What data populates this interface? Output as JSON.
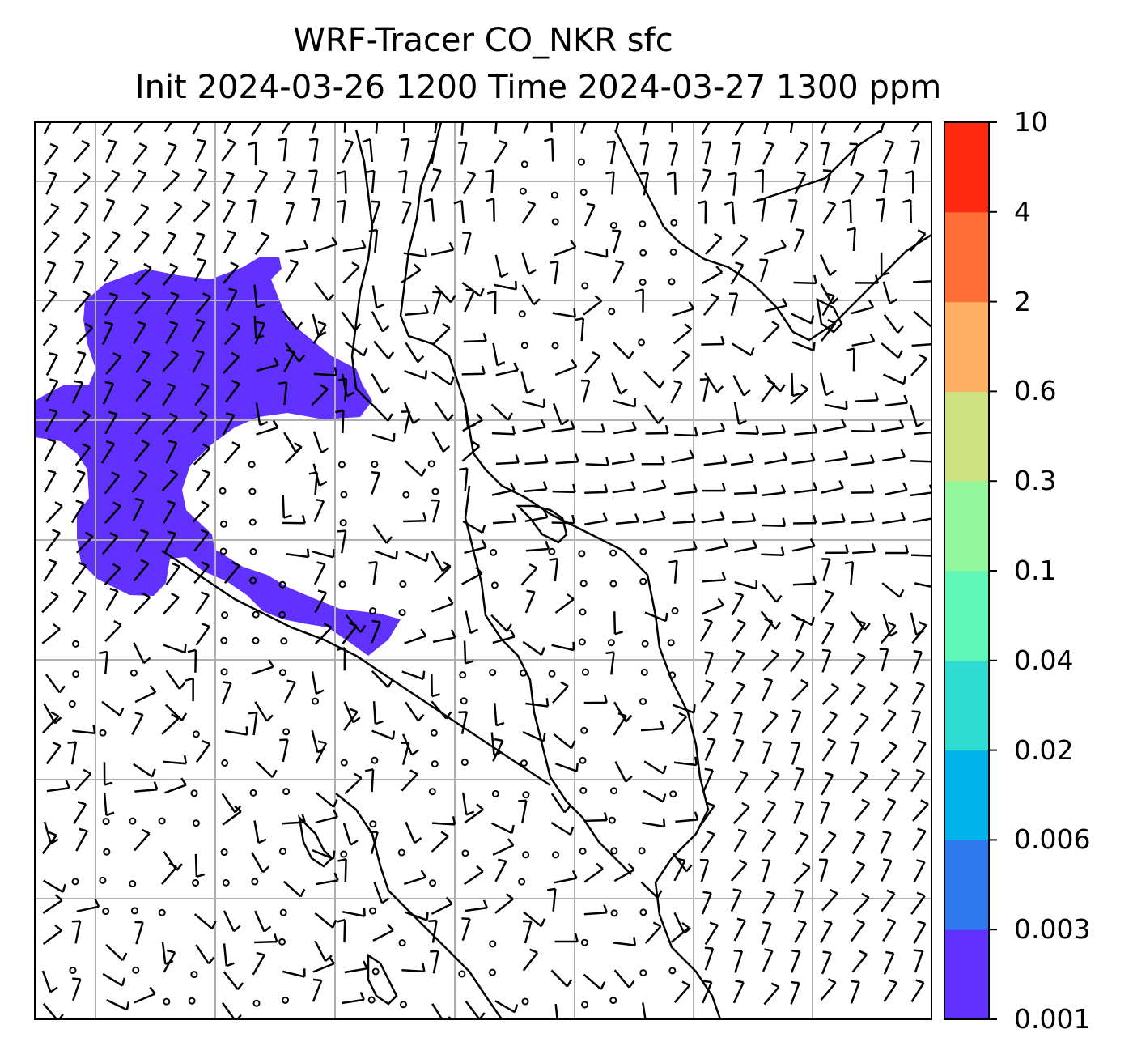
{
  "title": {
    "line1": "WRF-Tracer CO_NKR sfc",
    "line2": "Init 2024-03-26 1200 Time 2024-03-27 1300 ppm"
  },
  "colorbar": {
    "levels": [
      "0.001",
      "0.003",
      "0.006",
      "0.02",
      "0.04",
      "0.1",
      "0.3",
      "0.6",
      "2",
      "4",
      "10"
    ],
    "colors": [
      "#6131ff",
      "#3079f0",
      "#00b3ea",
      "#2fdcd4",
      "#60f7ba",
      "#91f79b",
      "#cfe282",
      "#ffb061",
      "#ff7038",
      "#ff2810"
    ]
  },
  "map_layers": {
    "field": "CO_NKR",
    "plume_color": "#6131ff",
    "wind": "barbs",
    "coastlines": true,
    "gridlines": true
  }
}
